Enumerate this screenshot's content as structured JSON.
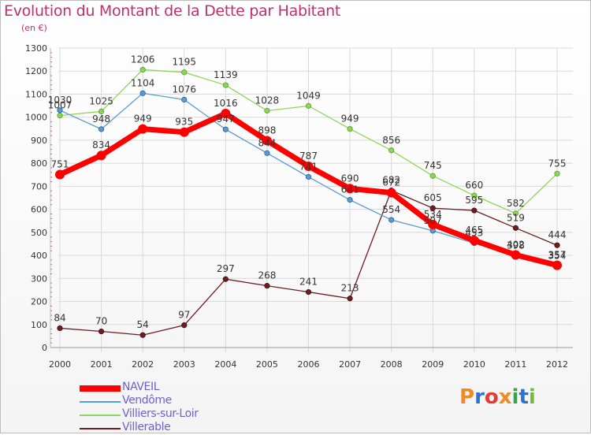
{
  "header": {
    "title": "Evolution du Montant de la Dette par Habitant",
    "unit": "(en €)"
  },
  "chart_data": {
    "type": "line",
    "title": "Evolution du Montant de la Dette par Habitant",
    "ylabel": "(en €)",
    "xlabel": "",
    "x": [
      "2000",
      "2001",
      "2002",
      "2003",
      "2004",
      "2005",
      "2006",
      "2007",
      "2008",
      "2009",
      "2010",
      "2011",
      "2012"
    ],
    "ylim": [
      0,
      1300
    ],
    "yticks": [
      "0",
      "100",
      "200",
      "300",
      "400",
      "500",
      "600",
      "700",
      "800",
      "900",
      "1000",
      "1100",
      "1200",
      "1300"
    ],
    "grid": true,
    "legend_position": "bottom-left",
    "series": [
      {
        "name": "Villerable",
        "color": "#6b1f24",
        "values": [
          84,
          70,
          54,
          97,
          297,
          268,
          241,
          213,
          682,
          605,
          595,
          519,
          444
        ]
      },
      {
        "name": "Villiers-sur-Loir",
        "color": "#8fd45a",
        "values": [
          1007,
          1025,
          1206,
          1195,
          1139,
          1028,
          1049,
          949,
          856,
          745,
          660,
          582,
          755
        ]
      },
      {
        "name": "Vendôme",
        "color": "#5b9bd5",
        "values": [
          1030,
          948,
          1104,
          1076,
          947,
          844,
          741,
          641,
          554,
          507,
          453,
          398,
          354
        ]
      },
      {
        "name": "NAVEIL",
        "color": "#ff0000",
        "values": [
          751,
          834,
          949,
          935,
          1016,
          898,
          787,
          690,
          672,
          534,
          465,
          402,
          357
        ]
      }
    ]
  },
  "legend": {
    "items": [
      {
        "name": "NAVEIL",
        "color": "#ff0000"
      },
      {
        "name": "Vendôme",
        "color": "#5b9bd5"
      },
      {
        "name": "Villiers-sur-Loir",
        "color": "#8fd45a"
      },
      {
        "name": "Villerable",
        "color": "#6b1f24"
      }
    ]
  },
  "logo": {
    "text": "Proxiti",
    "letter_colors": [
      "#f08a24",
      "#2f73c9",
      "#e03c31",
      "#f08a24",
      "#3aa34a",
      "#2f73c9",
      "#7ab83a"
    ]
  }
}
